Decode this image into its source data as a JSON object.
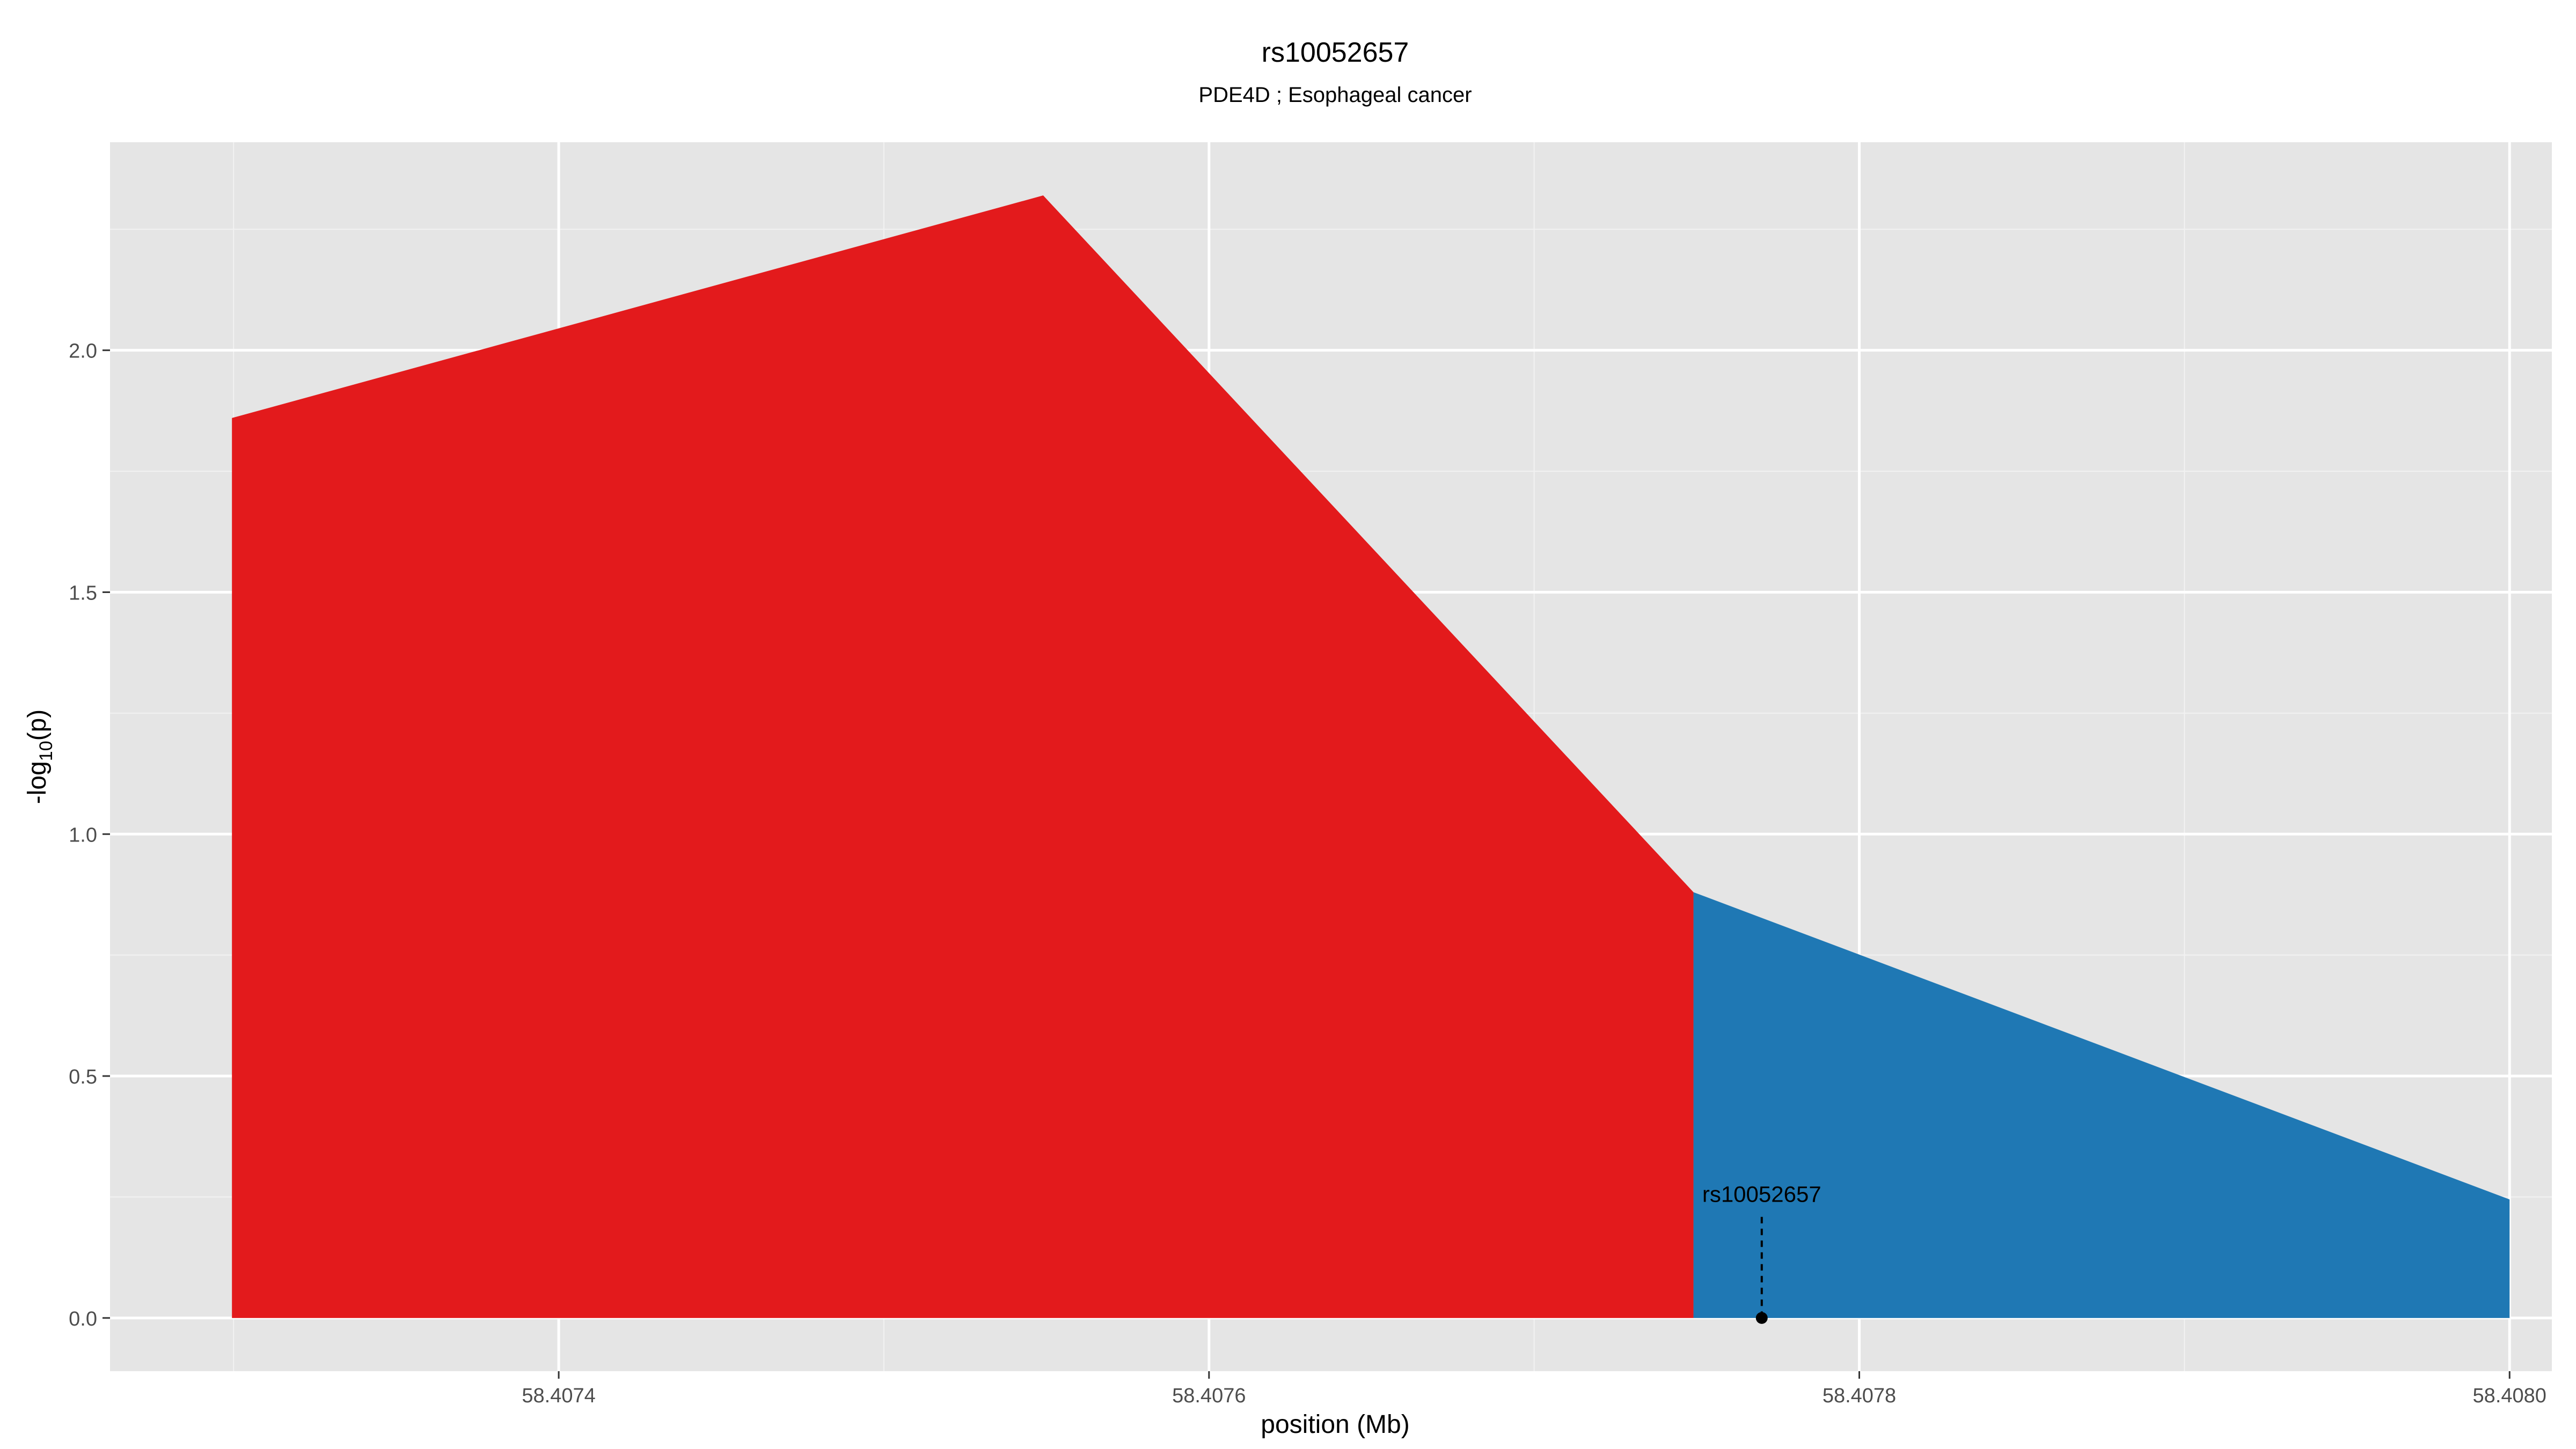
{
  "chart_data": {
    "type": "area",
    "title": "rs10052657",
    "subtitle": "PDE4D ; Esophageal cancer",
    "xlabel": "position (Mb)",
    "ylabel": "-log10(p)",
    "ylabel_parts": {
      "prefix": "-log",
      "sub": "10",
      "suffix": "(p)"
    },
    "xlim": [
      58.407262,
      58.408013
    ],
    "ylim": [
      -0.11,
      2.43
    ],
    "x_ticks": [
      58.4074,
      58.4076,
      58.4078,
      58.408
    ],
    "x_tick_labels": [
      "58.4074",
      "58.4076",
      "58.4078",
      "58.4080"
    ],
    "y_ticks": [
      0.0,
      0.5,
      1.0,
      1.5,
      2.0
    ],
    "y_tick_labels": [
      "0.0",
      "0.5",
      "1.0",
      "1.5",
      "2.0"
    ],
    "grid": true,
    "series": [
      {
        "color": "#E31A1C",
        "points": [
          {
            "x": 58.4072995,
            "y": 1.86
          },
          {
            "x": 58.407549,
            "y": 2.32
          },
          {
            "x": 58.407749,
            "y": 0.88
          }
        ]
      },
      {
        "color": "#1F78B4",
        "points": [
          {
            "x": 58.407749,
            "y": 0.88
          },
          {
            "x": 58.408,
            "y": 0.245
          }
        ]
      }
    ],
    "annotations": [
      {
        "label": "rs10052657",
        "x": 58.40777,
        "y": 0.0,
        "label_y": 0.24
      }
    ]
  },
  "colors": {
    "panel_bg": "#E5E5E5",
    "grid_major": "#FFFFFF",
    "grid_minor": "#F2F2F2",
    "tick_text": "#4D4D4D",
    "text": "#000000"
  }
}
